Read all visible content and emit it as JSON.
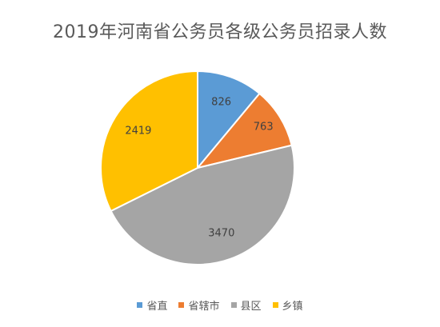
{
  "chart_data": {
    "type": "pie",
    "title": "2019年河南省公务员各级公务员招录人数",
    "categories": [
      "省直",
      "省辖市",
      "县区",
      "乡镇"
    ],
    "values": [
      826,
      763,
      3470,
      2419
    ],
    "colors": [
      "#5B9BD5",
      "#ED7D31",
      "#A5A5A5",
      "#FFC000"
    ],
    "data_labels": [
      "826",
      "763",
      "3470",
      "2419"
    ],
    "start_angle_deg": 0,
    "direction": "clockwise",
    "legend_position": "bottom"
  }
}
